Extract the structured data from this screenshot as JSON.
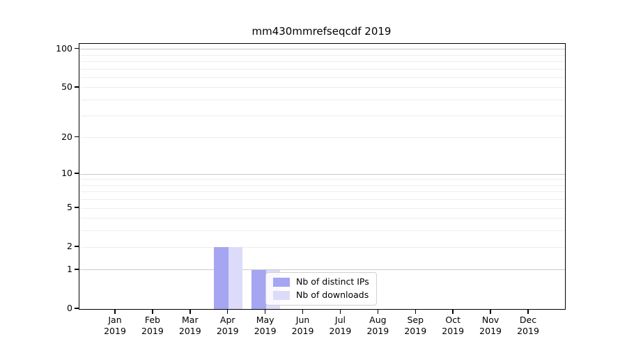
{
  "title": "mm430mmrefseqcdf 2019",
  "chart_data": {
    "type": "bar",
    "categories": [
      {
        "month": "Jan",
        "year": "2019"
      },
      {
        "month": "Feb",
        "year": "2019"
      },
      {
        "month": "Mar",
        "year": "2019"
      },
      {
        "month": "Apr",
        "year": "2019"
      },
      {
        "month": "May",
        "year": "2019"
      },
      {
        "month": "Jun",
        "year": "2019"
      },
      {
        "month": "Jul",
        "year": "2019"
      },
      {
        "month": "Aug",
        "year": "2019"
      },
      {
        "month": "Sep",
        "year": "2019"
      },
      {
        "month": "Oct",
        "year": "2019"
      },
      {
        "month": "Nov",
        "year": "2019"
      },
      {
        "month": "Dec",
        "year": "2019"
      }
    ],
    "series": [
      {
        "name": "Nb of distinct IPs",
        "color": "#a5a5f2",
        "values": [
          0,
          0,
          0,
          2,
          1,
          0,
          0,
          0,
          0,
          0,
          0,
          0
        ]
      },
      {
        "name": "Nb of downloads",
        "color": "#dcdcfa",
        "values": [
          0,
          0,
          0,
          2,
          1,
          0,
          0,
          0,
          0,
          0,
          0,
          0
        ]
      }
    ],
    "title": "mm430mmrefseqcdf 2019",
    "xlabel": "",
    "ylabel": "",
    "yscale": "log1p",
    "ylim": [
      0,
      110
    ],
    "y_ticks": [
      0,
      1,
      2,
      5,
      10,
      20,
      50,
      100
    ],
    "y_major_gridlines": [
      1,
      10,
      100
    ],
    "y_minor_gridlines": [
      2,
      3,
      4,
      5,
      6,
      7,
      8,
      9,
      20,
      30,
      40,
      50,
      60,
      70,
      80,
      90
    ],
    "grid": true,
    "legend_position": "lower center-right inside plot"
  },
  "colors": {
    "major_gridline": "#c9c9c9",
    "minor_gridline": "#ededed",
    "spine": "#000000",
    "background": "#ffffff"
  }
}
